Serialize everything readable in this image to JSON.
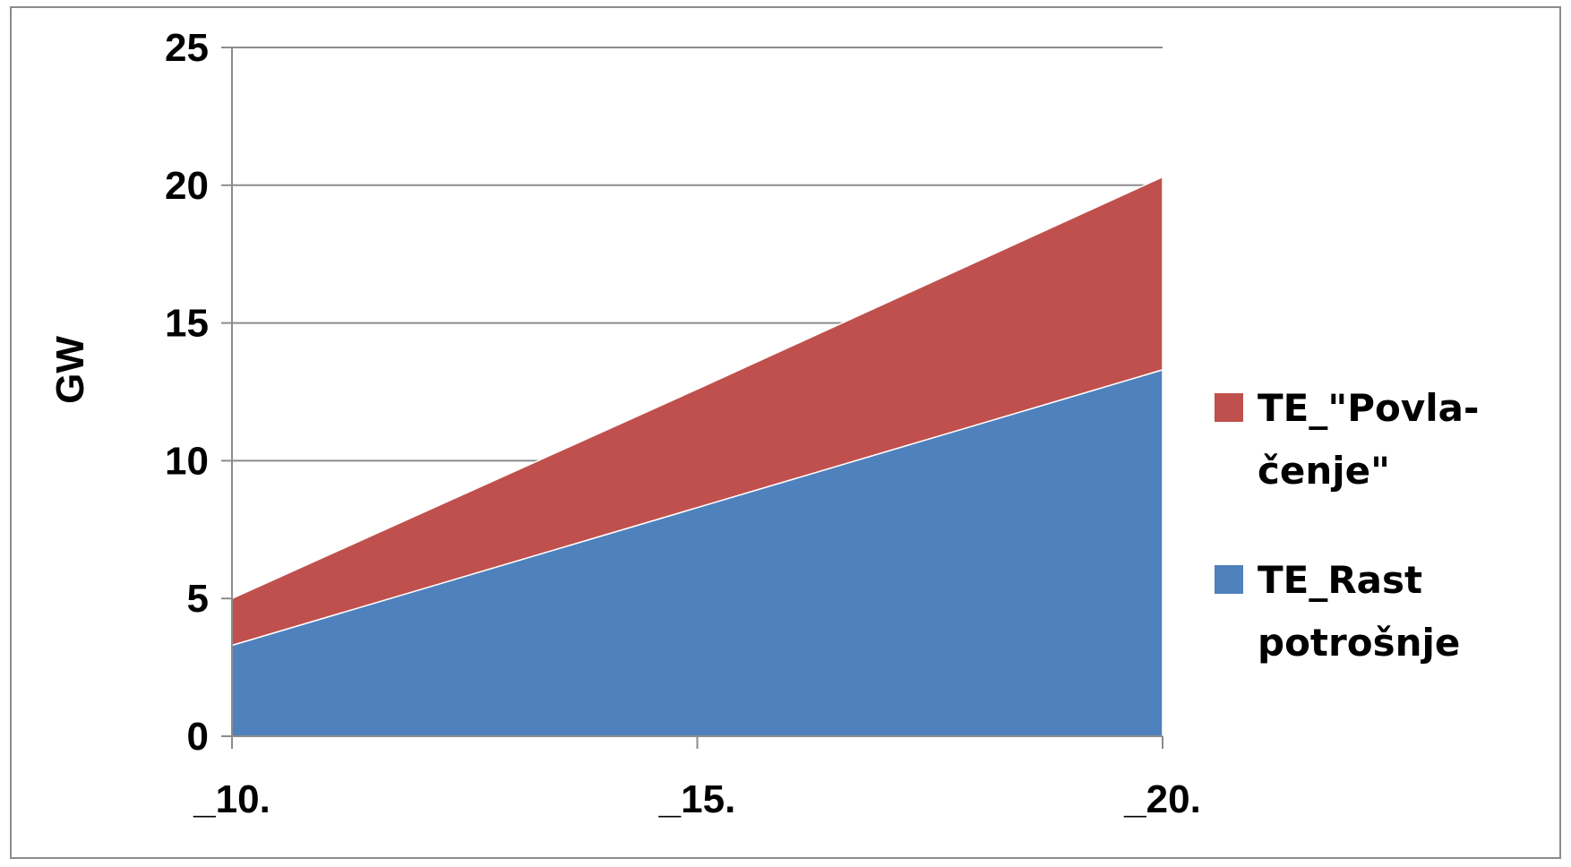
{
  "chart_data": {
    "type": "area",
    "stacked": true,
    "x": [
      "_10.",
      "_15.",
      "_20."
    ],
    "ylabel": "GW",
    "xlabel": "",
    "ylim": [
      0,
      25
    ],
    "yticks": [
      0,
      5,
      10,
      15,
      20,
      25
    ],
    "grid": "horizontal",
    "legend_position": "right",
    "series": [
      {
        "name": "TE_Rast potrošnje",
        "name_lines": [
          "TE_Rast",
          "potrošnje"
        ],
        "color": "#4F81BD",
        "values": [
          3.3,
          8.3,
          13.3
        ]
      },
      {
        "name": "TE_\"Povla-čenje\"",
        "name_lines": [
          "TE_\"Povla-",
          "čenje\""
        ],
        "color": "#C0504D",
        "values": [
          1.7,
          4.3,
          7.0
        ]
      }
    ]
  }
}
